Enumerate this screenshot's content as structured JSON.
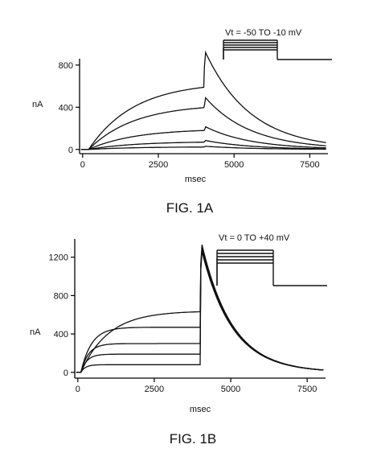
{
  "chart_data": [
    {
      "id": "fig1a",
      "type": "line",
      "caption": "FIG. 1A",
      "protocol_label": "Vt = -50 TO -10 mV",
      "xlabel": "msec",
      "ylabel": "nA",
      "xlim": [
        -100,
        8100
      ],
      "ylim": [
        -40,
        860
      ],
      "xticks": [
        0,
        2500,
        5000,
        7500
      ],
      "yticks": [
        0,
        400,
        800
      ],
      "pulse": {
        "start": 200,
        "end": 4000
      },
      "tail_tau": 1500,
      "series": [
        {
          "plateau": 640,
          "tau": 1500,
          "peak": 920
        },
        {
          "plateau": 430,
          "tau": 1500,
          "peak": 490
        },
        {
          "plateau": 195,
          "tau": 1500,
          "peak": 215
        },
        {
          "plateau": 75,
          "tau": 1500,
          "peak": 85
        },
        {
          "plateau": 25,
          "tau": 1500,
          "peak": 30
        }
      ]
    },
    {
      "id": "fig1b",
      "type": "line",
      "caption": "FIG. 1B",
      "protocol_label": "Vt = 0 TO +40 mV",
      "xlabel": "msec",
      "ylabel": "nA",
      "xlim": [
        -100,
        8100
      ],
      "ylim": [
        -60,
        1390
      ],
      "xticks": [
        0,
        2500,
        5000,
        7500
      ],
      "yticks": [
        0,
        400,
        800,
        1200
      ],
      "pulse": {
        "start": 100,
        "end": 4000
      },
      "tail_tau": 1000,
      "series": [
        {
          "plateau": 640,
          "tau": 900,
          "peak": 1330
        },
        {
          "plateau": 470,
          "tau": 350,
          "peak": 1300
        },
        {
          "plateau": 300,
          "tau": 250,
          "peak": 1280
        },
        {
          "plateau": 190,
          "tau": 200,
          "peak": 1270
        },
        {
          "plateau": 80,
          "tau": 150,
          "peak": 1260
        }
      ]
    }
  ]
}
